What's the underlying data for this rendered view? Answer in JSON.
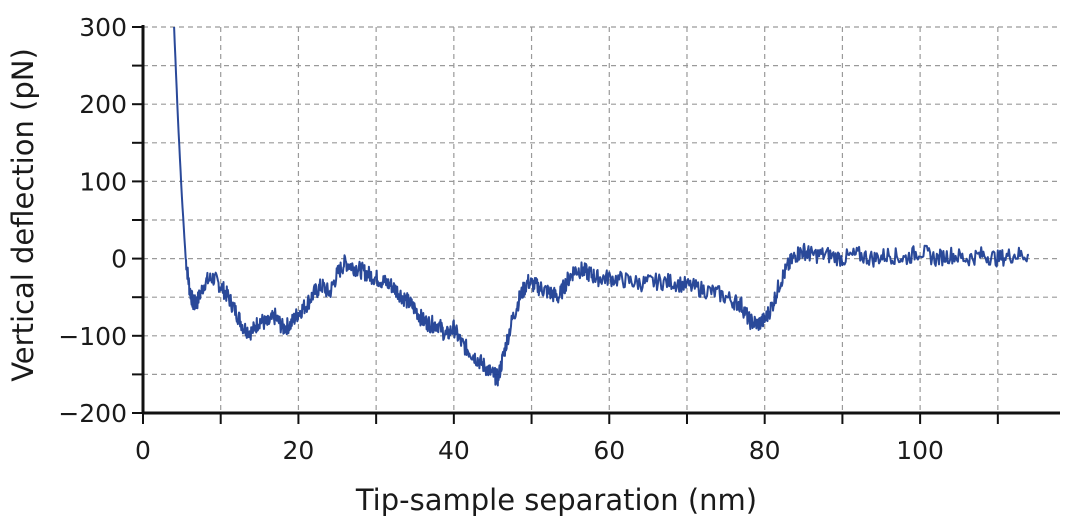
{
  "chart_data": {
    "type": "line",
    "title": "",
    "xlabel": "Tip-sample separation (nm)",
    "ylabel": "Vertical deflection (pN)",
    "xlim": [
      0,
      118
    ],
    "ylim": [
      -200,
      300
    ],
    "xticks": [
      0,
      20,
      40,
      60,
      80,
      100
    ],
    "xtick_labels": [
      "0",
      "20",
      "40",
      "60",
      "80",
      "100"
    ],
    "yticks": [
      -200,
      -100,
      0,
      100,
      200,
      300
    ],
    "ytick_labels": [
      "−200",
      "−100",
      "0",
      "100",
      "200",
      "300"
    ],
    "grid": true,
    "grid_style": "dashed",
    "legend": "none",
    "colors": {
      "line": "#1f3f93",
      "grid": "#9a9a9a",
      "axis": "#111111"
    },
    "series": [
      {
        "x": [
          4.0,
          4.5,
          5.0,
          5.5,
          6.0,
          6.5,
          7.0,
          8.0,
          9.0,
          10.0,
          11.0,
          12.0,
          13.0,
          14.0,
          15.0,
          16.0,
          17.0,
          18.0,
          19.0,
          20.0,
          21.0,
          22.0,
          23.0,
          24.0,
          25.0,
          26.0,
          27.0,
          28.0,
          29.0,
          30.0,
          31.0,
          32.0,
          33.0,
          34.0,
          35.0,
          36.0,
          37.0,
          38.0,
          39.0,
          40.0,
          41.0,
          42.0,
          43.0,
          44.0,
          45.0,
          45.7,
          46.5,
          47.5,
          48.5,
          49.5,
          50.5,
          51.5,
          52.5,
          53.5,
          54.5,
          55.5,
          56.5,
          57.5,
          58.5,
          60.0,
          62.0,
          64.0,
          66.0,
          68.0,
          70.0,
          72.0,
          74.0,
          76.0,
          77.0,
          78.0,
          79.0,
          80.0,
          81.0,
          82.0,
          83.0,
          84.0,
          85.0,
          86.0,
          88.0,
          90.0,
          92.0,
          94.0,
          96.0,
          98.0,
          100.0,
          102.0,
          104.0,
          106.0,
          108.0,
          110.0,
          112.0,
          114.0
        ],
        "y": [
          300,
          180,
          80,
          0,
          -40,
          -60,
          -55,
          -30,
          -25,
          -35,
          -50,
          -70,
          -90,
          -95,
          -80,
          -85,
          -75,
          -90,
          -85,
          -70,
          -60,
          -45,
          -35,
          -45,
          -20,
          -5,
          -10,
          -15,
          -20,
          -25,
          -30,
          -35,
          -45,
          -55,
          -65,
          -80,
          -85,
          -85,
          -100,
          -90,
          -110,
          -120,
          -130,
          -140,
          -150,
          -155,
          -120,
          -80,
          -50,
          -30,
          -35,
          -40,
          -45,
          -50,
          -30,
          -15,
          -15,
          -20,
          -25,
          -25,
          -28,
          -32,
          -30,
          -30,
          -35,
          -40,
          -45,
          -55,
          -60,
          -80,
          -85,
          -80,
          -60,
          -30,
          -10,
          5,
          10,
          5,
          5,
          0,
          5,
          0,
          5,
          0,
          10,
          0,
          5,
          0,
          5,
          0,
          5,
          5
        ]
      }
    ]
  }
}
